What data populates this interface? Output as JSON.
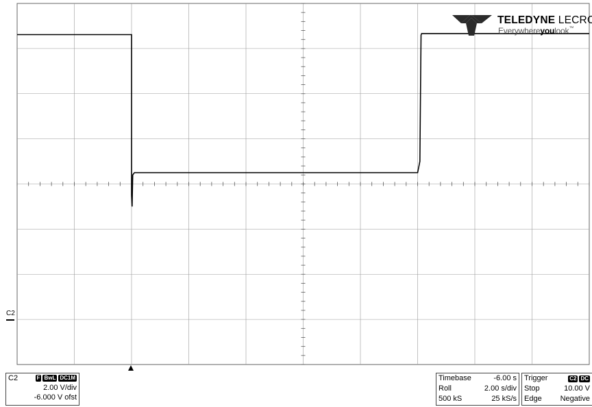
{
  "chart_data": {
    "type": "line",
    "title": "",
    "grid": true,
    "x_divisions": 10,
    "y_divisions": 8,
    "xlim": [
      -16,
      4
    ],
    "ylim": [
      -14,
      2
    ],
    "x_unit": "s",
    "y_unit": "V",
    "series": [
      {
        "x": [
          -16.0,
          -12.0,
          -12.0,
          -11.98,
          -11.96,
          -11.9,
          -6.0,
          -2.0,
          -1.92,
          -1.9,
          -1.88,
          -1.86,
          -1.8,
          4.0
        ],
        "y": [
          0.62,
          0.62,
          -6.5,
          -7.0,
          -5.6,
          -5.5,
          -5.5,
          -5.5,
          -5.0,
          -2.0,
          0.6,
          0.66,
          0.66,
          0.66
        ]
      }
    ]
  },
  "logo": {
    "brand_bold": "TELEDYNE",
    "brand_light": "LECROY",
    "tag_pre": "Everywhere",
    "tag_bold": "you",
    "tag_post": "look",
    "tm": "™"
  },
  "channel": {
    "marker_label": "C2",
    "name": "C2",
    "badges": [
      "F",
      "BwL",
      "DC1M"
    ],
    "vdiv": "2.00 V/div",
    "offset": "-6.000 V ofst"
  },
  "timebase": {
    "rows": [
      {
        "k": "Timebase",
        "v": "-6.00 s"
      },
      {
        "k": "Roll",
        "v": "2.00 s/div"
      },
      {
        "k": "500 kS",
        "v": "25 kS/s"
      }
    ]
  },
  "trigger": {
    "title": "Trigger",
    "badges": [
      "C2",
      "DC"
    ],
    "rows": [
      {
        "k": "Stop",
        "v": "10.00 V"
      },
      {
        "k": "Edge",
        "v": "Negative"
      }
    ]
  },
  "colors": {
    "trace": "#000000",
    "grid": "#9a9a9a",
    "frame": "#666666",
    "logo_mark": "#2b2b2b"
  }
}
